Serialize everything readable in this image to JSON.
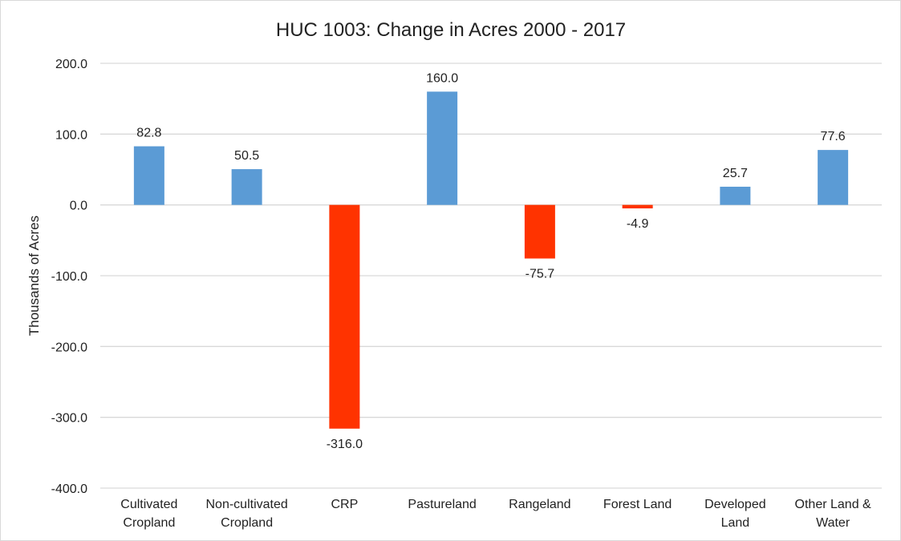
{
  "chart_data": {
    "type": "bar",
    "title": "HUC 1003: Change in Acres 2000 - 2017",
    "xlabel": "",
    "ylabel": "Thousands of Acres",
    "ylim": [
      -400,
      200
    ],
    "yticks": [
      "200.0",
      "100.0",
      "0.0",
      "-100.0",
      "-200.0",
      "-300.0",
      "-400.0"
    ],
    "ytick_values": [
      200,
      100,
      0,
      -100,
      -200,
      -300,
      -400
    ],
    "categories": [
      [
        "Cultivated",
        "Cropland"
      ],
      [
        "Non-cultivated",
        "Cropland"
      ],
      [
        "CRP"
      ],
      [
        "Pastureland"
      ],
      [
        "Rangeland"
      ],
      [
        "Forest Land"
      ],
      [
        "Developed",
        "Land"
      ],
      [
        "Other Land &",
        "Water"
      ]
    ],
    "values": [
      82.8,
      50.5,
      -316.0,
      160.0,
      -75.7,
      -4.9,
      25.7,
      77.6
    ],
    "data_labels": [
      "82.8",
      "50.5",
      "-316.0",
      "160.0",
      "-75.7",
      "-4.9",
      "25.7",
      "77.6"
    ],
    "grid": true,
    "legend": "none",
    "colors": {
      "positive": "#5b9bd5",
      "negative": "#ff3300",
      "grid": "#d9d9d9",
      "text": "#222222"
    }
  }
}
